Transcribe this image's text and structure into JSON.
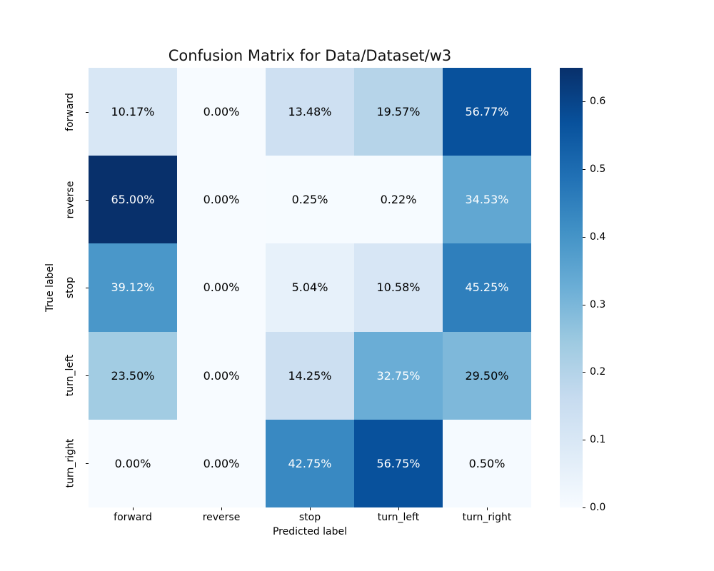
{
  "figure": {
    "background": "#ffffff"
  },
  "chart_data": {
    "type": "heatmap",
    "title": "Confusion Matrix for Data/Dataset/w3",
    "xlabel": "Predicted label",
    "ylabel": "True label",
    "x_categories": [
      "forward",
      "reverse",
      "stop",
      "turn_left",
      "turn_right"
    ],
    "y_categories": [
      "forward",
      "reverse",
      "stop",
      "turn_left",
      "turn_right"
    ],
    "values_percent": [
      [
        10.17,
        0.0,
        13.48,
        19.57,
        56.77
      ],
      [
        65.0,
        0.0,
        0.25,
        0.22,
        34.53
      ],
      [
        39.12,
        0.0,
        5.04,
        10.58,
        45.25
      ],
      [
        23.5,
        0.0,
        14.25,
        32.75,
        29.5
      ],
      [
        0.0,
        0.0,
        42.75,
        56.75,
        0.5
      ]
    ],
    "annotation_format": "two-decimal-percent",
    "colormap": {
      "name": "Blues",
      "anchors": [
        "#f7fbff",
        "#deebf7",
        "#c6dbef",
        "#9ecae1",
        "#6baed6",
        "#4292c6",
        "#2171b5",
        "#08519c",
        "#08306b"
      ]
    },
    "color_scale": {
      "vmin": 0.0,
      "vmax": 0.65
    },
    "colorbar_ticks": [
      0.0,
      0.1,
      0.2,
      0.3,
      0.4,
      0.5,
      0.6
    ],
    "annotation_text_colors": {
      "on_dark": "#ffffff",
      "on_light": "#000000"
    },
    "legend_position": "right-colorbar",
    "grid": false
  }
}
